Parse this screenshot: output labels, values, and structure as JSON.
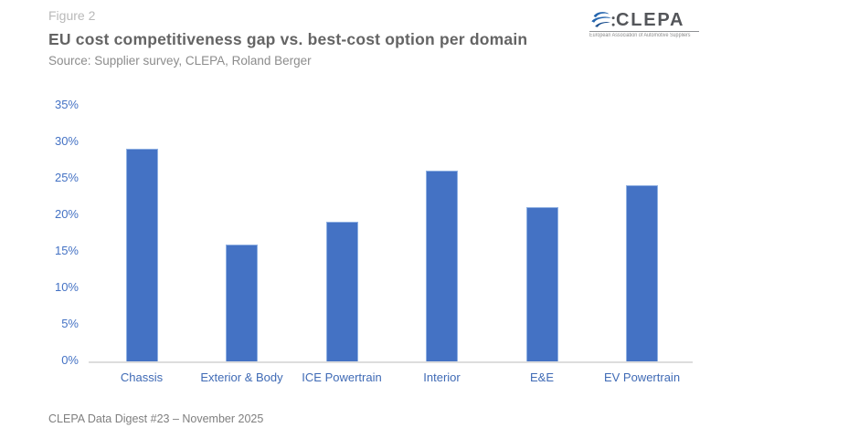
{
  "figure_label": "Figure 2",
  "title": "EU cost competitiveness gap vs. best-cost option per domain",
  "source": "Source: Supplier survey, CLEPA, Roland Berger",
  "footer": "CLEPA Data Digest #23 – November 2025",
  "logo": {
    "name": "CLEPA",
    "tagline": "European Association of Automotive Suppliers",
    "icon": "clepa-swirl-icon",
    "icon_color": "#2566af",
    "text_color": "#54565a"
  },
  "colors": {
    "bar": "#4472c4",
    "bar_border": "#8fb0e2",
    "axis_label": "#4472c4",
    "baseline": "#dddddd",
    "title_text": "#646464",
    "muted_text": "#8c8c8c",
    "figure_label_text": "#b9b9b9",
    "footer_text": "#7f7f7f"
  },
  "chart_data": {
    "type": "bar",
    "title": "EU cost competitiveness gap vs. best-cost option per domain",
    "categories": [
      "Chassis",
      "Exterior & Body",
      "ICE Powertrain",
      "Interior",
      "E&E",
      "EV Powertrain"
    ],
    "values": [
      29,
      16,
      19,
      26,
      21,
      24
    ],
    "unit": "%",
    "xlabel": "",
    "ylabel": "",
    "ylim": [
      0,
      35
    ],
    "ytick_step": 5,
    "yticks": [
      "0%",
      "5%",
      "10%",
      "15%",
      "20%",
      "25%",
      "30%",
      "35%"
    ],
    "grid": false,
    "legend": "none",
    "bar_color": "#4472c4"
  }
}
